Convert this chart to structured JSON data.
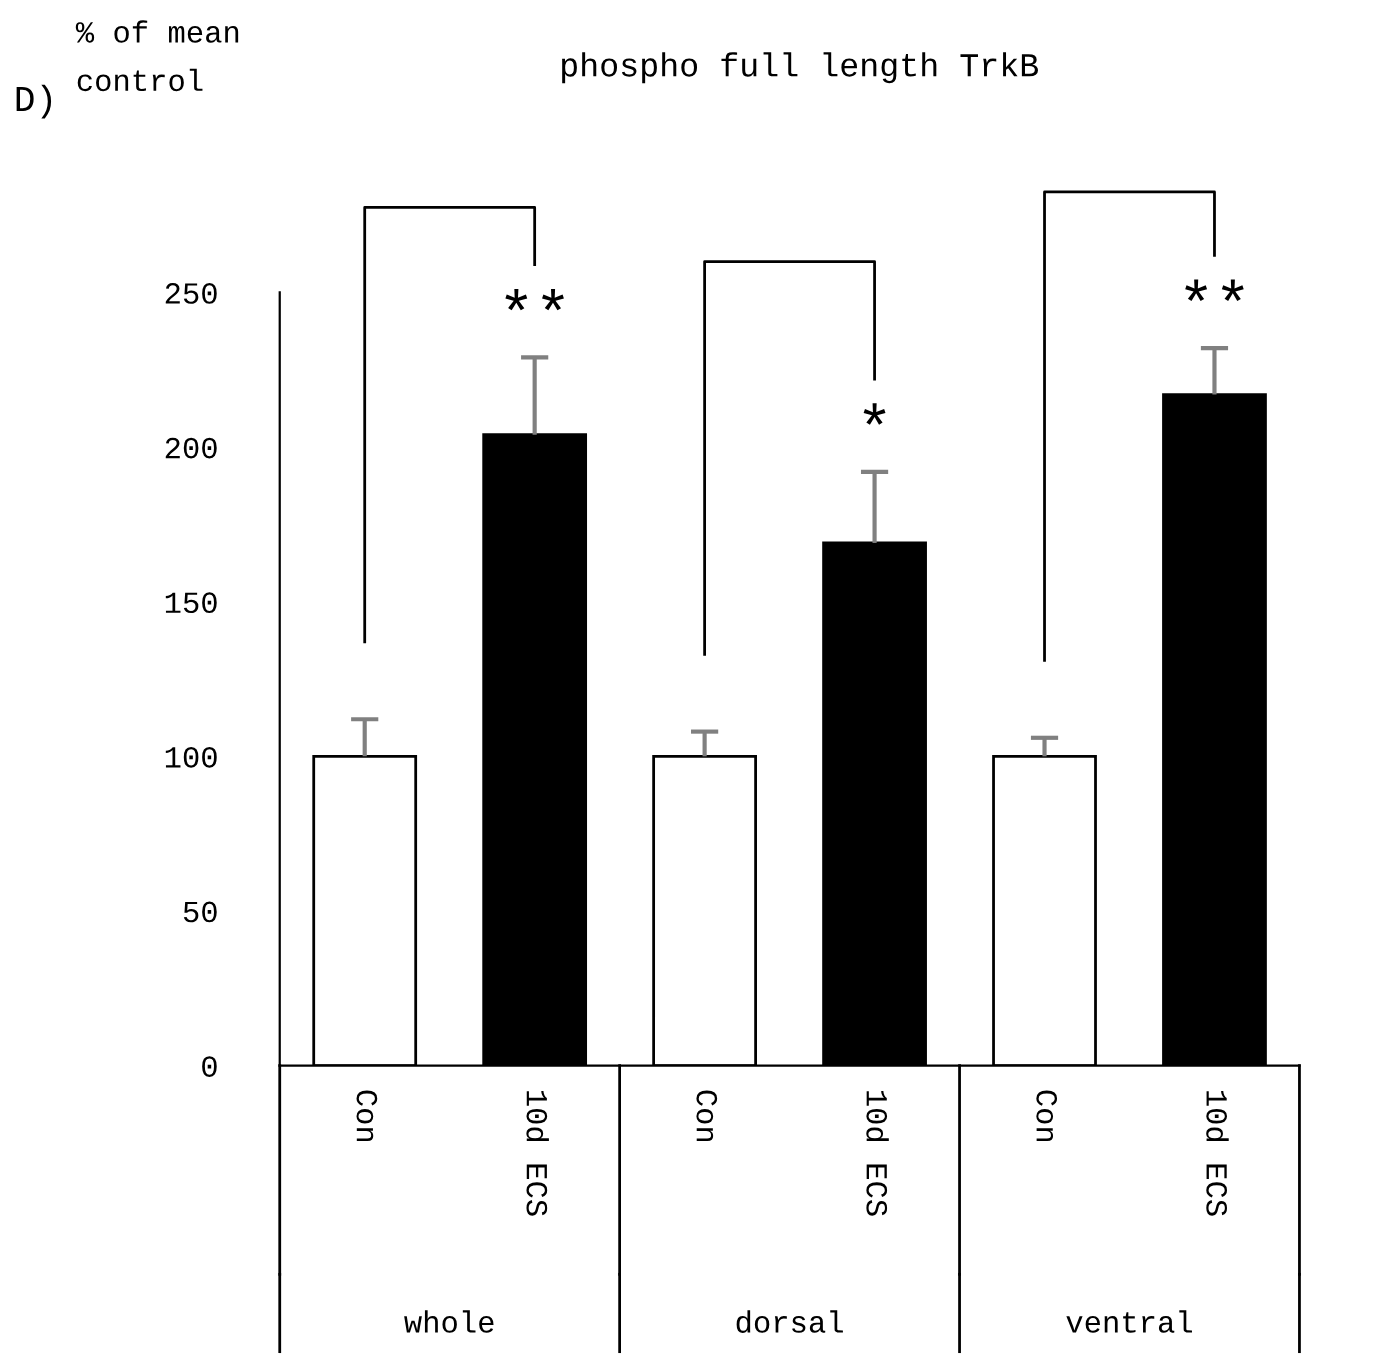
{
  "chart_data": {
    "type": "bar",
    "title": "phospho full length TrkB",
    "categories": [
      "Con",
      "10d ECS",
      "Con",
      "10d ECS",
      "Con",
      "10d ECS"
    ],
    "values": [
      100,
      204,
      100,
      169,
      100,
      217
    ],
    "colors": [
      "#ffffff",
      "#000000",
      "#ffffff",
      "#000000",
      "#ffffff",
      "#000000"
    ],
    "errors": [
      12,
      25,
      8,
      23,
      6,
      15
    ],
    "value_labels": [
      null,
      "**",
      null,
      "*",
      null,
      "**"
    ],
    "annotations": [
      "D)",
      "whole",
      "dorsal",
      "ventral",
      "% of mean control"
    ],
    "ylim": [
      0,
      250
    ],
    "yticks": [
      0,
      50,
      100,
      150,
      200,
      250
    ],
    "grid": false
  }
}
